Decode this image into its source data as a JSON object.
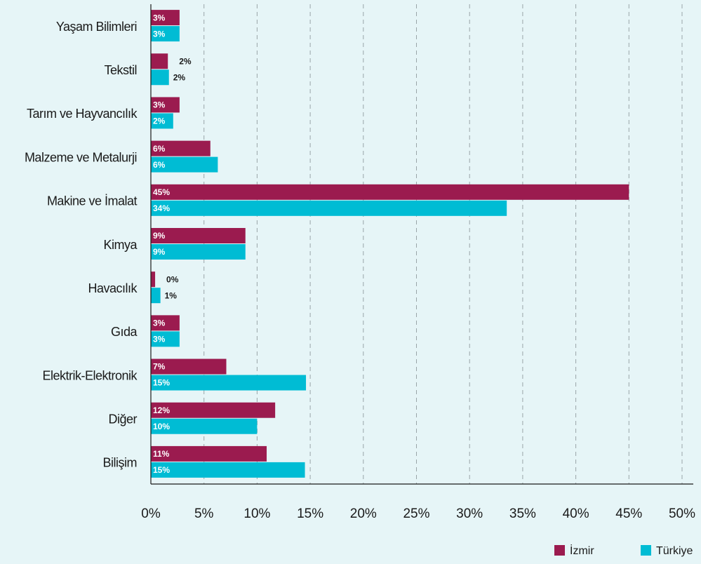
{
  "chart_data": {
    "type": "bar",
    "orientation": "horizontal",
    "categories": [
      "Yaşam Bilimleri",
      "Tekstil",
      "Tarım ve Hayvancılık",
      "Malzeme ve Metalurji",
      "Makine ve İmalat",
      "Kimya",
      "Havacılık",
      "Gıda",
      "Elektrik-Elektronik",
      "Diğer",
      "Bilişim"
    ],
    "series": [
      {
        "name": "İzmir",
        "color": "#9b1b4f",
        "values": [
          2.7,
          1.6,
          2.7,
          5.6,
          45.0,
          8.9,
          0.4,
          2.7,
          7.1,
          11.7,
          10.9
        ],
        "value_labels": [
          "3%",
          "2%",
          "3%",
          "6%",
          "45%",
          "9%",
          "0%",
          "3%",
          "7%",
          "12%",
          "11%"
        ]
      },
      {
        "name": "Türkiye",
        "color": "#00bcd4",
        "values": [
          2.7,
          1.7,
          2.1,
          6.3,
          33.5,
          8.9,
          0.9,
          2.7,
          14.6,
          10.0,
          14.5
        ],
        "value_labels": [
          "3%",
          "2%",
          "2%",
          "6%",
          "34%",
          "9%",
          "1%",
          "3%",
          "15%",
          "10%",
          "15%"
        ]
      }
    ],
    "xlim": [
      0,
      50
    ],
    "xticks": [
      {
        "value": 0,
        "label": "0%"
      },
      {
        "value": 5,
        "label": "5%"
      },
      {
        "value": 10,
        "label": "10%"
      },
      {
        "value": 15,
        "label": "15%"
      },
      {
        "value": 20,
        "label": "20%"
      },
      {
        "value": 25,
        "label": "25%"
      },
      {
        "value": 30,
        "label": "30%"
      },
      {
        "value": 35,
        "label": "35%"
      },
      {
        "value": 40,
        "label": "40%"
      },
      {
        "value": 45,
        "label": "45%"
      },
      {
        "value": 50,
        "label": "50%"
      }
    ],
    "grid": true,
    "legend": "bottom-right"
  }
}
